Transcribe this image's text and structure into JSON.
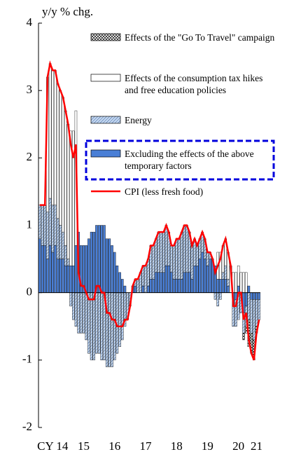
{
  "chart_data": {
    "type": "bar",
    "ylabel": "y/y % chg.",
    "ylim": [
      -2,
      4
    ],
    "yticks": [
      -2,
      -1,
      0,
      1,
      2,
      3,
      4
    ],
    "legend": "upper right",
    "categories": [
      null,
      null,
      null,
      null,
      null,
      "CY 14",
      null,
      null,
      null,
      null,
      null,
      null,
      null,
      null,
      null,
      null,
      null,
      "15",
      null,
      null,
      null,
      null,
      null,
      null,
      null,
      null,
      null,
      null,
      null,
      "16",
      null,
      null,
      null,
      null,
      null,
      null,
      null,
      null,
      null,
      null,
      null,
      "17",
      null,
      null,
      null,
      null,
      null,
      null,
      null,
      null,
      null,
      null,
      null,
      "18",
      null,
      null,
      null,
      null,
      null,
      null,
      null,
      null,
      null,
      null,
      null,
      "19",
      null,
      null,
      null,
      null,
      null,
      null,
      null,
      null,
      null,
      null,
      null,
      "20",
      null,
      null,
      null,
      null,
      null,
      null,
      "21",
      null
    ],
    "series": [
      {
        "name": "Effects of the \"Go To Travel\" campaign",
        "color": "#ffffff",
        "hatch": "cross",
        "values": [
          0,
          0,
          0,
          0,
          0,
          0,
          0,
          0,
          0,
          0,
          0,
          0,
          0,
          0,
          0,
          0,
          0,
          0,
          0,
          0,
          0,
          0,
          0,
          0,
          0,
          0,
          0,
          0,
          0,
          0,
          0,
          0,
          0,
          0,
          0,
          0,
          0,
          0,
          0,
          0,
          0,
          0,
          0,
          0,
          0,
          0,
          0,
          0,
          0,
          0,
          0,
          0,
          0,
          0,
          0,
          0,
          0,
          0,
          0,
          0,
          0,
          0,
          0,
          0,
          0,
          0,
          0,
          0,
          0,
          0,
          0,
          0,
          0,
          0,
          0,
          0,
          0,
          0,
          0,
          -0.1,
          -0.1,
          -0.4,
          -0.3,
          -0.3,
          -0.1,
          0
        ]
      },
      {
        "name": "Effects of the consumption tax hikes and free education policies",
        "color": "#ffffff",
        "hatch": "none",
        "values": [
          0,
          0,
          0,
          2,
          2,
          2,
          2,
          2,
          2,
          2,
          2,
          2,
          2,
          2,
          2,
          0,
          0,
          0,
          0,
          0,
          0,
          0,
          0,
          0,
          0,
          0,
          0,
          0,
          0,
          0,
          0,
          0,
          0,
          0,
          0,
          0,
          0,
          0,
          0,
          0,
          0,
          0,
          0,
          0,
          0,
          0,
          0,
          0,
          0,
          0,
          0,
          0,
          0,
          0,
          0,
          0,
          0,
          0,
          0,
          0,
          0,
          0,
          0,
          0,
          0,
          0,
          0,
          0,
          0,
          0.4,
          0.4,
          0.4,
          0.4,
          0.4,
          0.4,
          0.3,
          0.3,
          0.3,
          0.3,
          0.3,
          0.3,
          0,
          0,
          0,
          0,
          0
        ]
      },
      {
        "name": "Energy",
        "color": "#c5d9f1",
        "hatch": "diagonal",
        "values": [
          0.5,
          0.6,
          0.6,
          0.7,
          0.7,
          0.7,
          0.6,
          0.6,
          0.5,
          0.4,
          0.3,
          0.1,
          -0.2,
          -0.4,
          -0.5,
          -0.6,
          -0.6,
          -0.6,
          -0.7,
          -0.9,
          -1.0,
          -1.0,
          -0.9,
          -0.9,
          -1.0,
          -1.0,
          -1.1,
          -1.1,
          -1.1,
          -1.0,
          -0.9,
          -0.8,
          -0.7,
          -0.5,
          -0.4,
          -0.2,
          0.0,
          0.1,
          0.2,
          0.3,
          0.3,
          0.4,
          0.4,
          0.5,
          0.5,
          0.5,
          0.6,
          0.6,
          0.6,
          0.6,
          0.5,
          0.4,
          0.5,
          0.6,
          0.6,
          0.7,
          0.7,
          0.7,
          0.6,
          0.5,
          0.4,
          0.3,
          0.3,
          0.3,
          0.3,
          0.2,
          0.1,
          0.0,
          -0.1,
          -0.2,
          -0.1,
          0.1,
          0.2,
          0.1,
          0.0,
          -0.3,
          -0.4,
          -0.4,
          -0.3,
          -0.3,
          -0.3,
          -0.4,
          -0.5,
          -0.6,
          -0.4,
          -0.3
        ]
      },
      {
        "name": "Excluding  the effects of the above temporary factors",
        "color": "#4a7fd6",
        "hatch": "none",
        "values": [
          0.8,
          0.7,
          0.7,
          0.5,
          0.7,
          0.6,
          0.7,
          0.5,
          0.5,
          0.5,
          0.4,
          0.4,
          0.4,
          0.4,
          0.7,
          0.9,
          0.7,
          0.7,
          0.7,
          0.8,
          0.9,
          0.9,
          1.0,
          1.0,
          1.0,
          1.0,
          0.8,
          0.8,
          0.7,
          0.6,
          0.4,
          0.3,
          0.2,
          0.1,
          0.0,
          0.0,
          0.1,
          0.1,
          0.0,
          0.0,
          0.1,
          0.0,
          0.1,
          0.2,
          0.2,
          0.3,
          0.3,
          0.3,
          0.3,
          0.4,
          0.4,
          0.3,
          0.2,
          0.2,
          0.2,
          0.2,
          0.3,
          0.3,
          0.3,
          0.2,
          0.4,
          0.4,
          0.5,
          0.6,
          0.5,
          0.4,
          0.5,
          0.5,
          0.4,
          0.2,
          0.2,
          0.2,
          0.2,
          0.1,
          0.0,
          -0.2,
          -0.1,
          0.1,
          0.0,
          -0.3,
          -0.2,
          0.1,
          -0.1,
          -0.1,
          -0.1,
          -0.1
        ]
      },
      {
        "name": "CPI (less fresh food)",
        "color": "#ff0000",
        "type": "line",
        "values": [
          1.3,
          1.3,
          1.3,
          3.2,
          3.4,
          3.3,
          3.3,
          3.1,
          3.0,
          2.9,
          2.7,
          2.5,
          2.2,
          2.0,
          2.2,
          0.3,
          0.1,
          0.1,
          0.0,
          -0.1,
          -0.1,
          -0.1,
          0.1,
          0.1,
          0.0,
          0.0,
          -0.3,
          -0.3,
          -0.4,
          -0.4,
          -0.5,
          -0.5,
          -0.5,
          -0.4,
          -0.4,
          -0.2,
          0.1,
          0.2,
          0.2,
          0.3,
          0.4,
          0.4,
          0.5,
          0.7,
          0.7,
          0.8,
          0.9,
          0.9,
          0.9,
          1.0,
          0.9,
          0.7,
          0.7,
          0.8,
          0.8,
          0.9,
          1.0,
          1.0,
          0.9,
          0.7,
          0.8,
          0.7,
          0.8,
          0.9,
          0.8,
          0.6,
          0.6,
          0.5,
          0.3,
          0.4,
          0.5,
          0.7,
          0.8,
          0.6,
          0.4,
          -0.2,
          -0.2,
          0.0,
          0.0,
          -0.4,
          -0.3,
          -0.7,
          -0.9,
          -1.0,
          -0.6,
          -0.4
        ]
      }
    ]
  }
}
